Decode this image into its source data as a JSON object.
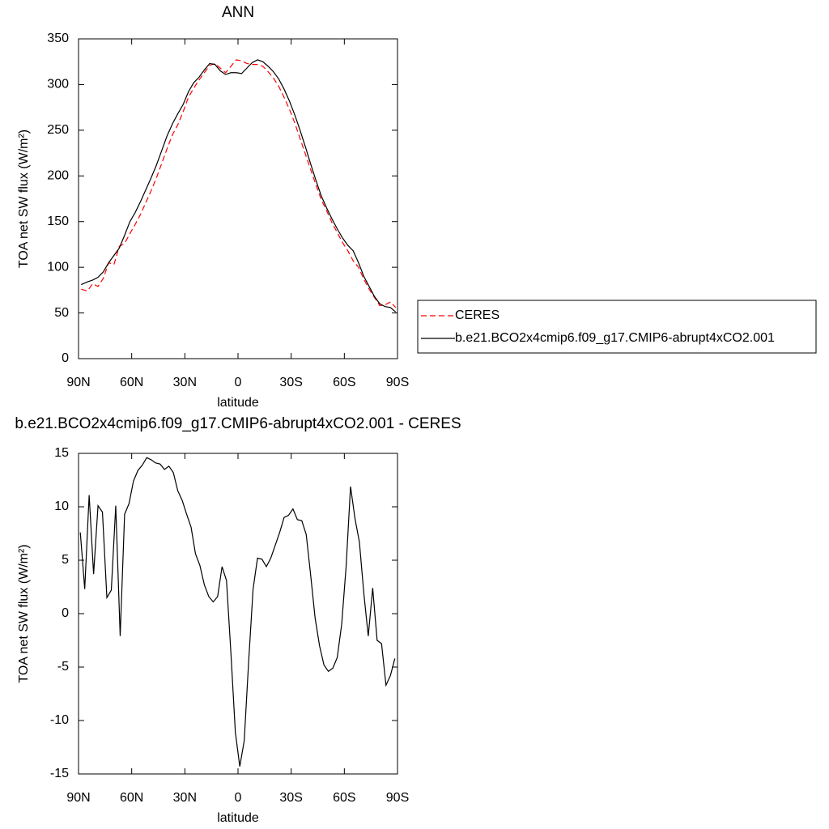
{
  "chart_data": [
    {
      "type": "line",
      "title": "ANN",
      "xlabel": "latitude",
      "ylabel": "TOA net SW flux (W/m²)",
      "x": [
        88.5,
        85,
        82,
        79,
        76,
        73,
        70,
        67,
        64,
        61,
        58,
        55,
        52,
        49,
        46,
        43,
        40,
        37,
        34,
        31,
        28,
        25,
        22,
        19,
        16,
        13,
        10,
        7,
        4,
        1,
        -2,
        -5,
        -8,
        -11,
        -14,
        -17,
        -20,
        -23,
        -26,
        -29,
        -32,
        -35,
        -38,
        -41,
        -44,
        -47,
        -50,
        -53,
        -56,
        -59,
        -62,
        -65,
        -68,
        -71,
        -74,
        -77,
        -80,
        -83,
        -86,
        -89
      ],
      "series": [
        {
          "name": "CERES",
          "color": "#ff0000",
          "dash": true,
          "values": [
            76,
            74,
            82,
            79,
            88,
            105,
            103,
            123,
            126,
            137,
            147,
            158,
            171,
            184,
            198,
            214,
            230,
            245,
            256,
            270,
            286,
            296,
            305,
            313,
            321,
            323,
            318,
            313,
            320,
            327,
            326,
            323,
            322,
            322,
            320,
            314,
            307,
            298,
            286,
            273,
            258,
            241,
            224,
            207,
            190,
            174,
            162,
            149,
            138,
            127,
            118,
            107,
            100,
            87,
            76,
            67,
            58,
            59,
            62,
            56
          ]
        },
        {
          "name": "b.e21.BCO2x4cmip6.f09_g17.CMIP6-abrupt4xCO2.001",
          "color": "#000000",
          "dash": false,
          "values": [
            81,
            84,
            86,
            89,
            95,
            105,
            113,
            121,
            135,
            150,
            160,
            172,
            185,
            198,
            212,
            228,
            244,
            257,
            268,
            278,
            292,
            302,
            308,
            316,
            323,
            322,
            315,
            311,
            313,
            313,
            312,
            318,
            324,
            327,
            325,
            320,
            314,
            306,
            295,
            282,
            267,
            250,
            232,
            213,
            195,
            178,
            165,
            153,
            142,
            132,
            124,
            118,
            105,
            90,
            79,
            68,
            60,
            57,
            56,
            51
          ]
        }
      ],
      "xlim": [
        90,
        -90
      ],
      "xticks": [
        {
          "value": 90,
          "label": "90N"
        },
        {
          "value": 60,
          "label": "60N"
        },
        {
          "value": 30,
          "label": "30N"
        },
        0,
        {
          "value": -30,
          "label": "30S"
        },
        {
          "value": -60,
          "label": "60S"
        },
        {
          "value": -90,
          "label": "90S"
        }
      ],
      "ylim": [
        0,
        350
      ],
      "yticks": [
        0,
        50,
        100,
        150,
        200,
        250,
        300,
        350
      ],
      "legend": "right"
    },
    {
      "type": "line",
      "title": "b.e21.BCO2x4cmip6.f09_g17.CMIP6-abrupt4xCO2.001 - CERES",
      "xlabel": "latitude",
      "ylabel": "TOA net SW flux (W/m²)",
      "x": [
        89,
        86.5,
        84,
        81.5,
        79,
        76.5,
        74,
        71.5,
        69,
        66.5,
        64,
        61.5,
        59,
        56.5,
        54,
        51.5,
        49,
        46.5,
        44,
        41.5,
        39,
        36.5,
        34,
        31.5,
        29,
        26.5,
        24,
        21.5,
        19,
        16.5,
        14,
        11.5,
        9,
        6.5,
        4,
        1.5,
        -1,
        -3.5,
        -6,
        -8.5,
        -11,
        -13.5,
        -16,
        -18.5,
        -21,
        -23.5,
        -26,
        -28.5,
        -31,
        -33.5,
        -36,
        -38.5,
        -41,
        -43.5,
        -46,
        -48.5,
        -51,
        -53.5,
        -56,
        -58.5,
        -61,
        -63.5,
        -66,
        -68.5,
        -71,
        -73.5,
        -76,
        -78.5,
        -81,
        -83.5,
        -86,
        -88.5
      ],
      "color": "#000000",
      "values": [
        7.6,
        2.3,
        11.1,
        3.7,
        10.1,
        9.5,
        1.5,
        2.2,
        10.1,
        -2.1,
        9.3,
        10.3,
        12.4,
        13.4,
        13.9,
        14.6,
        14.4,
        14.1,
        14.0,
        13.5,
        13.8,
        13.2,
        11.5,
        10.6,
        9.3,
        8.1,
        5.6,
        4.5,
        2.7,
        1.6,
        1.1,
        1.6,
        4.4,
        3.1,
        -3.7,
        -11.1,
        -14.3,
        -11.9,
        -4.5,
        2.3,
        5.2,
        5.1,
        4.4,
        5.2,
        6.4,
        7.6,
        9.0,
        9.2,
        9.8,
        8.8,
        8.7,
        7.4,
        3.6,
        -0.4,
        -3.0,
        -4.8,
        -5.4,
        -5.1,
        -4.1,
        -1.0,
        4.4,
        11.9,
        8.9,
        6.7,
        1.9,
        -2.1,
        2.4,
        -2.5,
        -2.8,
        -6.7,
        -5.8,
        -4.2
      ],
      "xlim": [
        90,
        -90
      ],
      "xticks": [
        {
          "value": 90,
          "label": "90N"
        },
        {
          "value": 60,
          "label": "60N"
        },
        {
          "value": 30,
          "label": "30N"
        },
        0,
        {
          "value": -30,
          "label": "30S"
        },
        {
          "value": -60,
          "label": "60S"
        },
        {
          "value": -90,
          "label": "90S"
        }
      ],
      "ylim": [
        -15,
        15
      ],
      "yticks": [
        -15,
        -10,
        -5,
        0,
        5,
        10,
        15
      ]
    }
  ]
}
